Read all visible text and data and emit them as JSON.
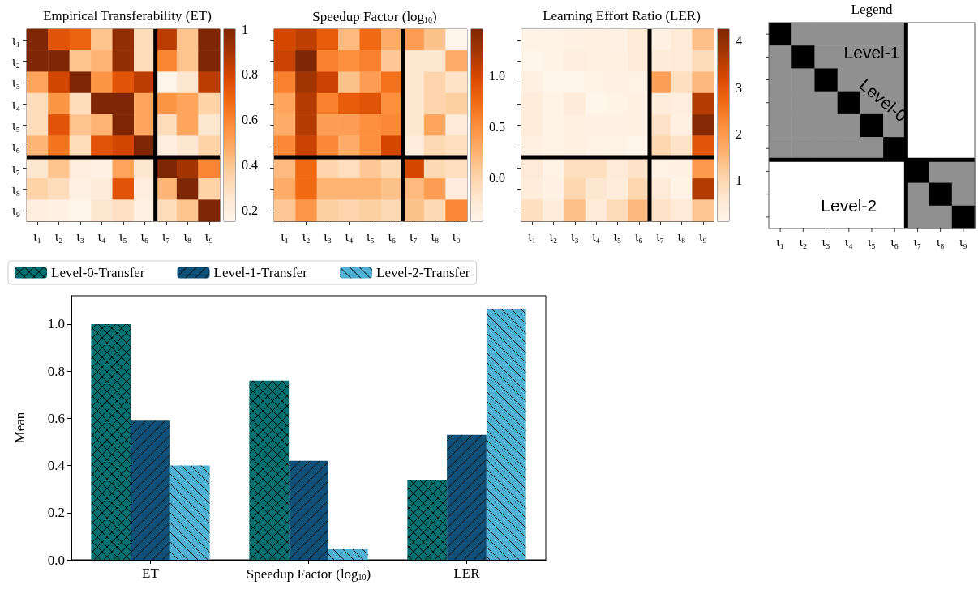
{
  "chart_data": [
    {
      "type": "heatmap",
      "title": "Empirical Transferability (ET)",
      "categories": [
        "ι₁",
        "ι₂",
        "ι₃",
        "ι₄",
        "ι₅",
        "ι₆",
        "ι₇",
        "ι₈",
        "ι₉"
      ],
      "y_categories": [
        "ι₁",
        "ι₂",
        "ι₃",
        "ι₄",
        "ι₅",
        "ι₆",
        "ι₇",
        "ι₈",
        "ι₉"
      ],
      "cells": [
        [
          1.0,
          0.75,
          0.7,
          0.4,
          0.95,
          0.3,
          0.85,
          0.4,
          1.0
        ],
        [
          1.0,
          1.0,
          0.4,
          0.45,
          0.95,
          0.3,
          0.6,
          0.4,
          1.0
        ],
        [
          0.5,
          0.8,
          1.0,
          0.55,
          0.75,
          0.85,
          0.15,
          0.25,
          0.85
        ],
        [
          0.3,
          0.55,
          0.3,
          1.0,
          1.0,
          0.5,
          0.55,
          0.5,
          0.35
        ],
        [
          0.3,
          0.75,
          0.4,
          0.45,
          1.0,
          0.5,
          0.3,
          0.5,
          0.25
        ],
        [
          0.45,
          0.65,
          0.3,
          0.75,
          0.8,
          1.0,
          0.2,
          0.25,
          0.35
        ],
        [
          0.25,
          0.4,
          0.2,
          0.18,
          0.5,
          0.25,
          1.0,
          0.9,
          0.6
        ],
        [
          0.35,
          0.3,
          0.18,
          0.22,
          0.75,
          0.2,
          0.45,
          1.0,
          0.35
        ],
        [
          0.2,
          0.18,
          0.15,
          0.25,
          0.28,
          0.18,
          0.3,
          0.4,
          1.0
        ]
      ],
      "clim": [
        0.15,
        1.0
      ],
      "cticks": [
        0.2,
        0.4,
        0.6,
        0.8,
        1.0
      ]
    },
    {
      "type": "heatmap",
      "title": "Speedup Factor (log$_{10}$)",
      "categories": [
        "ι₁",
        "ι₂",
        "ι₃",
        "ι₄",
        "ι₅",
        "ι₆",
        "ι₇",
        "ι₈",
        "ι₉"
      ],
      "y_categories": [
        null,
        null,
        null,
        null,
        null,
        null,
        null,
        null,
        null
      ],
      "cells": [
        [
          1.0,
          1.1,
          0.85,
          0.2,
          0.75,
          0.3,
          0.4,
          0.15,
          -0.4
        ],
        [
          1.05,
          1.45,
          0.6,
          0.5,
          0.6,
          0.1,
          -0.2,
          -0.2,
          0.3
        ],
        [
          0.6,
          1.25,
          1.05,
          0.15,
          0.4,
          0.7,
          -0.2,
          0.0,
          -0.15
        ],
        [
          0.35,
          1.15,
          0.6,
          0.85,
          0.9,
          0.5,
          -0.2,
          0.0,
          0.05
        ],
        [
          0.3,
          1.15,
          0.4,
          0.4,
          0.5,
          0.55,
          -0.2,
          0.35,
          -0.25
        ],
        [
          0.55,
          1.05,
          0.55,
          0.3,
          0.5,
          1.0,
          -0.3,
          -0.05,
          -0.1
        ],
        [
          0.2,
          0.75,
          0.0,
          -0.1,
          0.1,
          -0.05,
          1.0,
          -0.05,
          -0.1
        ],
        [
          0.3,
          0.75,
          0.25,
          0.25,
          0.25,
          0.15,
          0.2,
          0.4,
          -0.3
        ],
        [
          0.1,
          0.45,
          0.05,
          0.0,
          0.05,
          -0.05,
          0.15,
          -0.05,
          0.55
        ]
      ],
      "clim": [
        -0.42,
        1.45
      ],
      "cticks": [
        {
          "value": 0,
          "label": "0.0"
        },
        0.5,
        {
          "value": 1,
          "label": "1.0"
        }
      ],
      "tick_labels": "x"
    },
    {
      "type": "heatmap",
      "title": "Learning Effort Ratio (LER)",
      "categories": [
        "ι₁",
        "ι₂",
        "ι₃",
        "ι₄",
        "ι₅",
        "ι₆",
        "ι₇",
        "ι₈",
        "ι₉"
      ],
      "y_categories": [
        null,
        null,
        null,
        null,
        null,
        null,
        null,
        null,
        null
      ],
      "cells": [
        [
          0.2,
          0.2,
          0.25,
          0.3,
          0.25,
          0.5,
          0.25,
          0.5,
          1.4
        ],
        [
          0.15,
          0.2,
          0.35,
          0.3,
          0.3,
          0.5,
          0.45,
          0.5,
          0.9
        ],
        [
          0.3,
          0.15,
          0.15,
          0.2,
          0.25,
          0.2,
          1.9,
          0.8,
          1.5
        ],
        [
          0.4,
          0.2,
          0.45,
          0.12,
          0.2,
          0.3,
          0.4,
          0.35,
          3.6
        ],
        [
          0.4,
          0.2,
          0.3,
          0.25,
          0.25,
          0.3,
          0.7,
          0.3,
          4.2
        ],
        [
          0.3,
          0.2,
          0.3,
          0.2,
          0.2,
          0.15,
          1.0,
          0.7,
          3.0
        ],
        [
          0.5,
          0.2,
          0.8,
          0.8,
          0.5,
          0.7,
          0.2,
          0.25,
          2.0
        ],
        [
          0.4,
          0.25,
          1.0,
          0.6,
          0.4,
          1.0,
          0.5,
          0.2,
          3.6
        ],
        [
          0.8,
          0.4,
          1.4,
          0.5,
          0.9,
          1.5,
          0.7,
          0.5,
          1.3
        ]
      ],
      "clim": [
        0.12,
        4.26
      ],
      "cticks": [
        1,
        2,
        3,
        4
      ],
      "tick_labels": "x"
    },
    {
      "type": "other",
      "title": "Legend",
      "categories": [
        "ι₁",
        "ι₂",
        "ι₃",
        "ι₄",
        "ι₅",
        "ι₆",
        "ι₇",
        "ι₈",
        "ι₉"
      ],
      "annotations": [
        "Level-1",
        "Level-0",
        "Level-2"
      ]
    },
    {
      "type": "bar",
      "categories": [
        "ET",
        "Speedup Factor (log$_{10}$)",
        "LER"
      ],
      "ylabel": "Mean",
      "ylim": [
        0,
        1.12
      ],
      "yticks": [
        {
          "value": 0,
          "label": "0.0"
        },
        0.2,
        0.4,
        0.6,
        0.8,
        {
          "value": 1,
          "label": "1.0"
        }
      ],
      "legend": "top",
      "series": [
        {
          "name": "Level-0-Transfer",
          "color": "#007070",
          "values": [
            1.0,
            0.76,
            0.34
          ]
        },
        {
          "name": "Level-1-Transfer",
          "color": "#0e5078",
          "values": [
            0.59,
            0.42,
            0.53
          ]
        },
        {
          "name": "Level-2-Transfer",
          "color": "#4fb0d4",
          "values": [
            0.4,
            0.045,
            1.065
          ]
        }
      ]
    }
  ]
}
